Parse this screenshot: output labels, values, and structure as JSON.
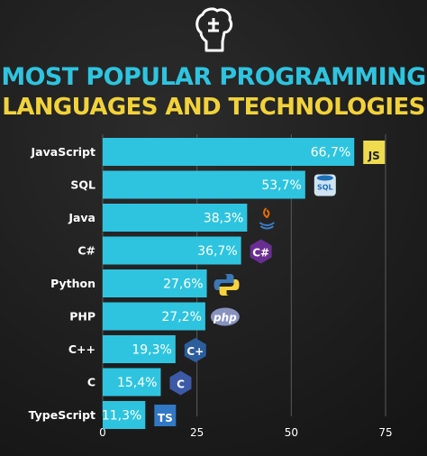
{
  "title_line1": "MOST POPULAR PROGRAMMING",
  "title_line2": "LANGUAGES AND TECHNOLOGIES",
  "colors": {
    "bar": "#2ec4e0",
    "title1": "#2ec4e0",
    "title2": "#f2d23a",
    "background": "#1f1f1f"
  },
  "chart_data": {
    "type": "bar",
    "orientation": "horizontal",
    "categories": [
      "JavaScript",
      "SQL",
      "Java",
      "C#",
      "Python",
      "PHP",
      "C++",
      "C",
      "TypeScript"
    ],
    "values": [
      66.7,
      53.7,
      38.3,
      36.7,
      27.6,
      27.2,
      19.3,
      15.4,
      11.3
    ],
    "value_labels": [
      "66,7%",
      "53,7%",
      "38,3%",
      "36,7%",
      "27,6%",
      "27,2%",
      "19,3%",
      "15,4%",
      "11,3%"
    ],
    "icons": [
      "js-icon",
      "sql-icon",
      "java-icon",
      "csharp-icon",
      "python-icon",
      "php-icon",
      "cpp-icon",
      "c-icon",
      "typescript-icon"
    ],
    "icon_text": [
      "JS",
      "SQL",
      "",
      "C#",
      "",
      "php",
      "C+",
      "C",
      "TS"
    ],
    "xticks": [
      "0",
      "25",
      "50",
      "75"
    ],
    "xlim": [
      0,
      75
    ],
    "grid": true
  }
}
